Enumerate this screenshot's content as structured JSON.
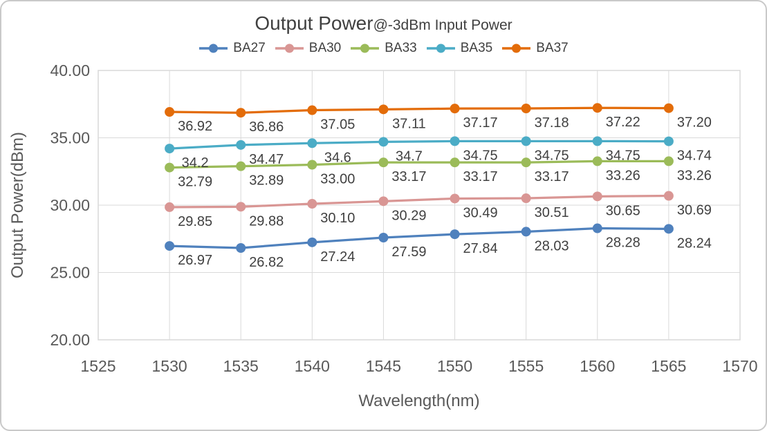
{
  "chart_data": {
    "type": "line",
    "title": "Output Power",
    "title_suffix": "@-3dBm Input Power",
    "xlabel": "Wavelength(nm)",
    "ylabel": "Output Power(dBm)",
    "x": [
      1530,
      1535,
      1540,
      1545,
      1550,
      1555,
      1560,
      1565
    ],
    "xlim": [
      1525,
      1570
    ],
    "ylim": [
      20,
      40
    ],
    "x_ticks": [
      1525,
      1530,
      1535,
      1540,
      1545,
      1550,
      1555,
      1560,
      1565,
      1570
    ],
    "y_tick_values": [
      40,
      35,
      30,
      25,
      20
    ],
    "y_tick_labels": [
      "40.00",
      "35.00",
      "30.00",
      "25.00",
      "20.00"
    ],
    "grid": true,
    "legend_position": "top",
    "series": [
      {
        "name": "BA27",
        "color": "#4F81BD",
        "values": [
          26.97,
          26.82,
          27.24,
          27.59,
          27.84,
          28.03,
          28.28,
          28.24
        ],
        "labels": [
          "26.97",
          "26.82",
          "27.24",
          "27.59",
          "27.84",
          "28.03",
          "28.28",
          "28.24"
        ]
      },
      {
        "name": "BA30",
        "color": "#D99694",
        "values": [
          29.85,
          29.88,
          30.1,
          30.29,
          30.49,
          30.51,
          30.65,
          30.69
        ],
        "labels": [
          "29.85",
          "29.88",
          "30.10",
          "30.29",
          "30.49",
          "30.51",
          "30.65",
          "30.69"
        ]
      },
      {
        "name": "BA33",
        "color": "#9BBB59",
        "values": [
          32.79,
          32.89,
          33.0,
          33.17,
          33.17,
          33.17,
          33.26,
          33.26
        ],
        "labels": [
          "32.79",
          "32.89",
          "33.00",
          "33.17",
          "33.17",
          "33.17",
          "33.26",
          "33.26"
        ]
      },
      {
        "name": "BA35",
        "color": "#4BACC6",
        "values": [
          34.2,
          34.47,
          34.6,
          34.7,
          34.75,
          34.75,
          34.75,
          34.74
        ],
        "labels": [
          "34.2",
          "34.47",
          "34.6",
          "34.7",
          "34.75",
          "34.75",
          "34.75",
          "34.74"
        ]
      },
      {
        "name": "BA37",
        "color": "#E36C09",
        "values": [
          36.92,
          36.86,
          37.05,
          37.11,
          37.17,
          37.18,
          37.22,
          37.2
        ],
        "labels": [
          "36.92",
          "36.86",
          "37.05",
          "37.11",
          "37.17",
          "37.18",
          "37.22",
          "37.20"
        ]
      }
    ]
  }
}
